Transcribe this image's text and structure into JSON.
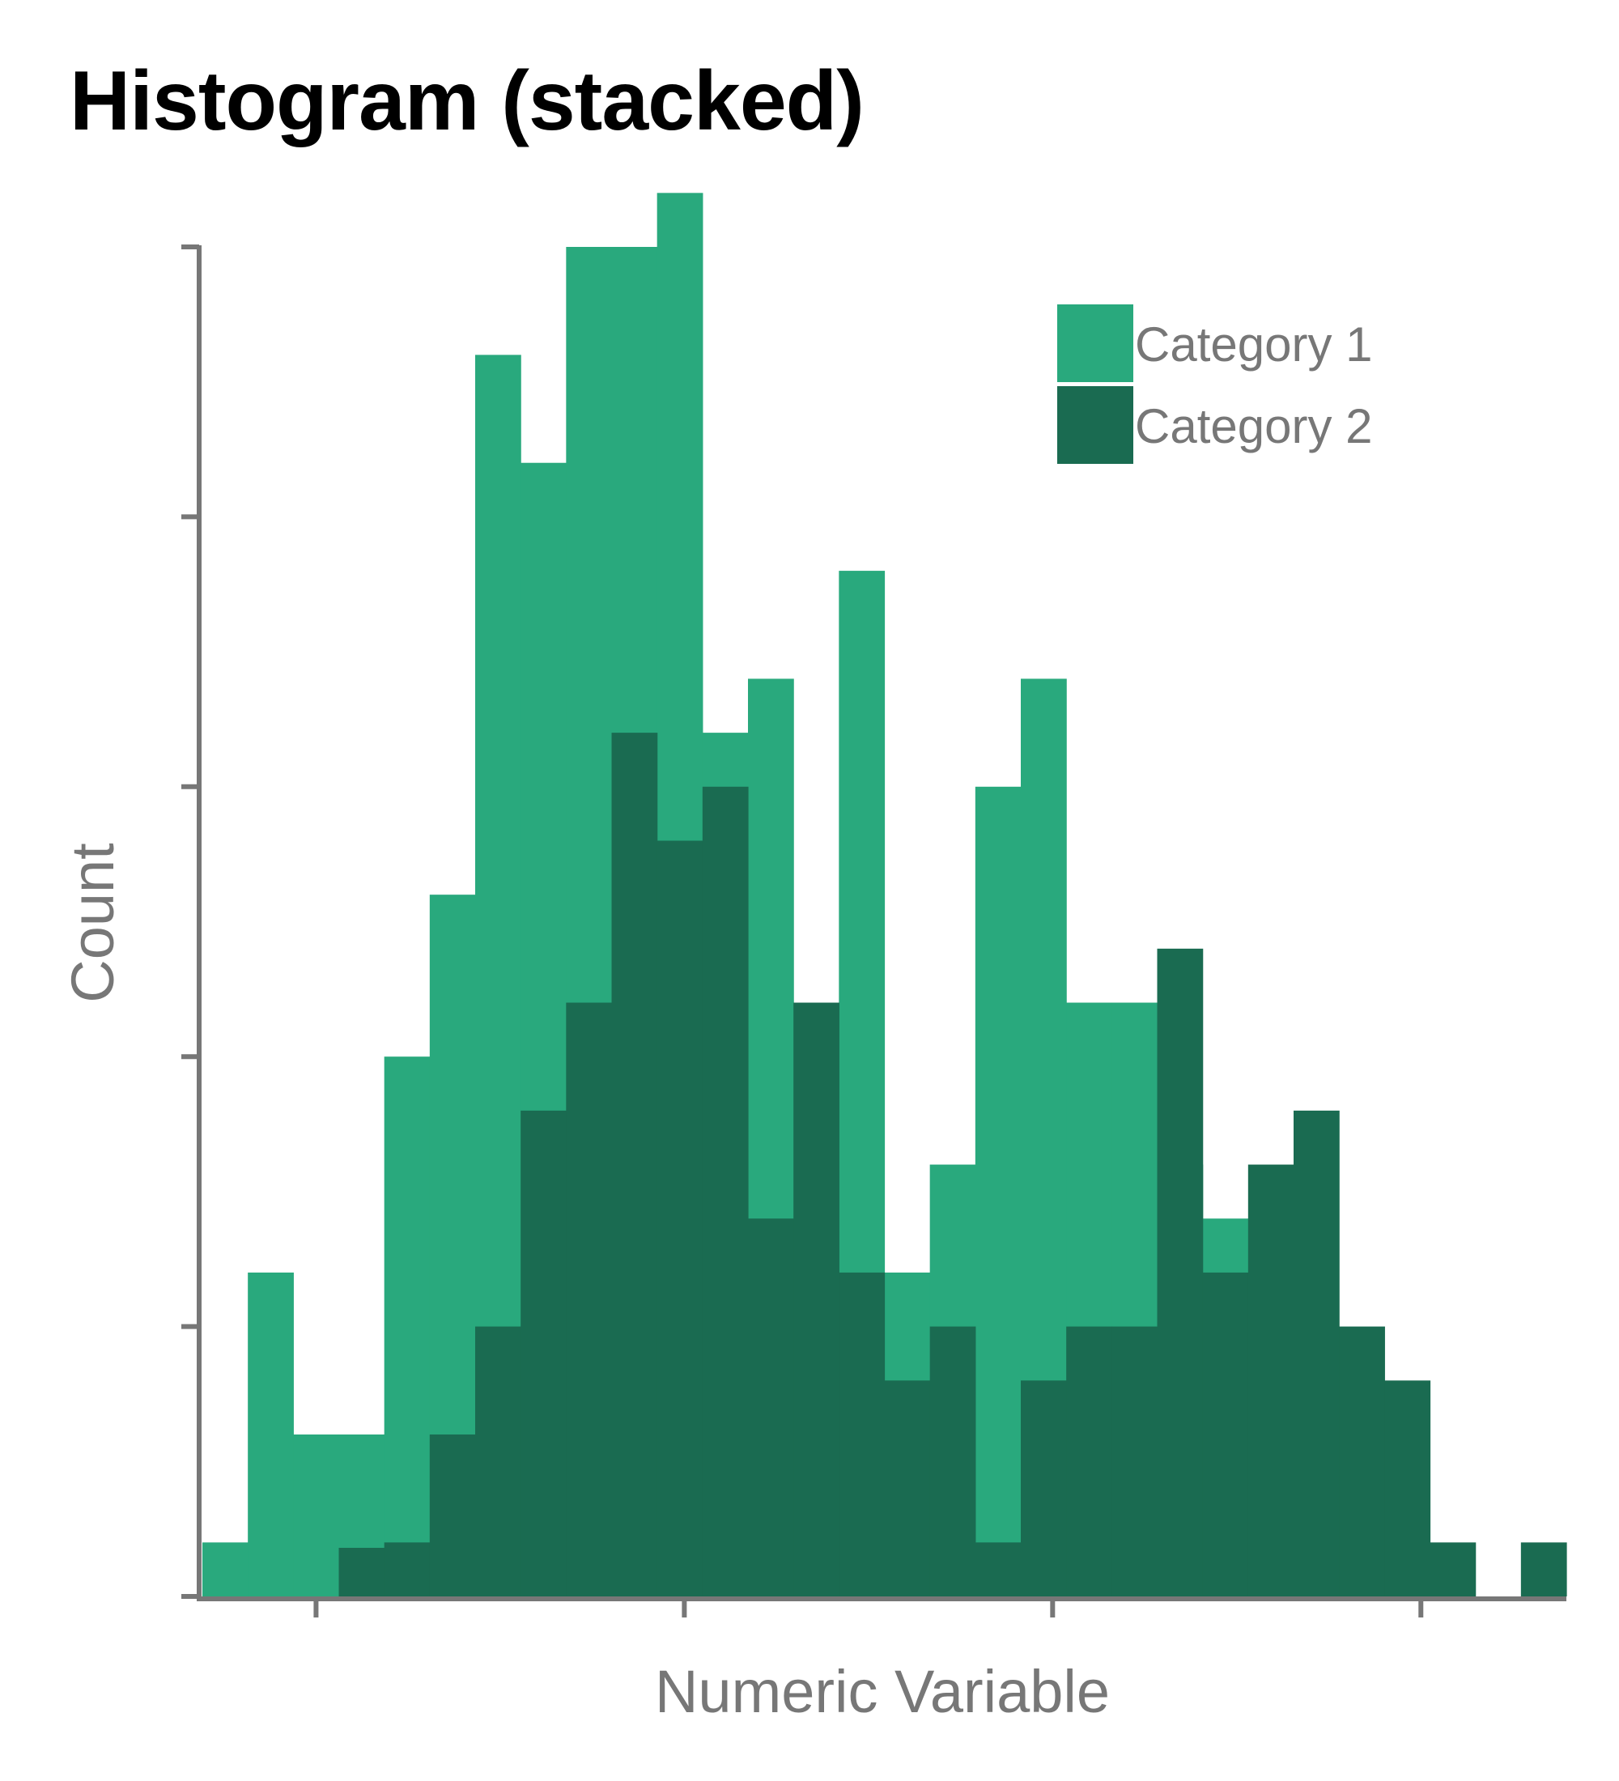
{
  "chart_data": {
    "type": "bar",
    "title": "Histogram (stacked)",
    "xlabel": "Numeric Variable",
    "ylabel": "Count",
    "ylim": [
      0,
      25
    ],
    "grid": false,
    "legend_position": "top-right",
    "bin_edges": [
      0,
      1,
      2,
      3,
      4,
      5,
      6,
      7,
      8,
      9,
      10,
      11,
      12,
      13,
      14,
      15,
      16,
      17,
      18,
      19,
      20,
      21,
      22,
      23,
      24,
      25,
      26,
      27,
      28,
      29,
      30
    ],
    "series": [
      {
        "name": "Category 1",
        "color": "#29a97d",
        "values": [
          1,
          6,
          3,
          3,
          10,
          13,
          23,
          21,
          25,
          25,
          26,
          16,
          17,
          10,
          19,
          6,
          8,
          15,
          17,
          11,
          11,
          8,
          7,
          0,
          0,
          0,
          0,
          0,
          0,
          0
        ]
      },
      {
        "name": "Category 2",
        "color": "#1a6b51",
        "values": [
          0,
          0,
          0,
          0.9,
          1,
          3,
          5,
          9,
          11,
          16,
          14,
          15,
          7,
          11,
          6,
          4,
          5,
          1,
          4,
          5,
          5,
          12,
          6,
          8,
          9,
          5,
          4,
          1,
          0,
          1
        ]
      }
    ]
  },
  "legend": {
    "items": [
      {
        "label": "Category 1",
        "color": "#29a97d"
      },
      {
        "label": "Category 2",
        "color": "#1a6b51"
      }
    ]
  },
  "colors": {
    "axis": "#777777",
    "title": "#000000",
    "label": "#777777"
  }
}
